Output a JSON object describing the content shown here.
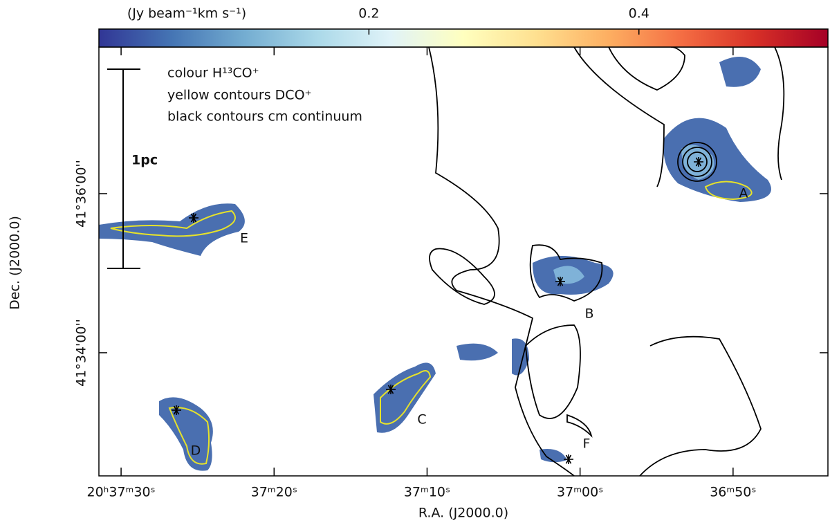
{
  "chart_data": {
    "type": "image",
    "colorbar": {
      "label": "(Jy beam⁻¹km s⁻¹)",
      "lim": [
        0,
        0.54
      ],
      "ticks": [
        0.2,
        0.4
      ],
      "colormap": [
        "#313695",
        "#4575b4",
        "#74add1",
        "#abd9e9",
        "#e0f3f8",
        "#ffffbf",
        "#fee090",
        "#fdae61",
        "#f46d43",
        "#d73027",
        "#a50026"
      ]
    },
    "xlabel": "R.A. (J2000.0)",
    "ylabel": "Dec. (J2000.0)",
    "xlim": [
      91.45,
      43.8
    ],
    "xticks": [
      {
        "value": 90,
        "label": "20ʰ37ᵐ30ˢ"
      },
      {
        "value": 80,
        "label": "37ᵐ20ˢ"
      },
      {
        "value": 70,
        "label": "37ᵐ10ˢ"
      },
      {
        "value": 60,
        "label": "37ᵐ00ˢ"
      },
      {
        "value": 50,
        "label": "36ᵐ50ˢ"
      }
    ],
    "ylim": [
      147.1,
      470.6
    ],
    "yticks": [
      {
        "value": 240,
        "label": "41°34'00''"
      },
      {
        "value": 360,
        "label": "41°36'00''"
      }
    ],
    "legend": [
      "colour H¹³CO⁺",
      "yellow contours DCO⁺",
      "black contours cm continuum"
    ],
    "scale_bar": "1pc",
    "sources": [
      "A",
      "B",
      "C",
      "D",
      "E",
      "F"
    ]
  }
}
